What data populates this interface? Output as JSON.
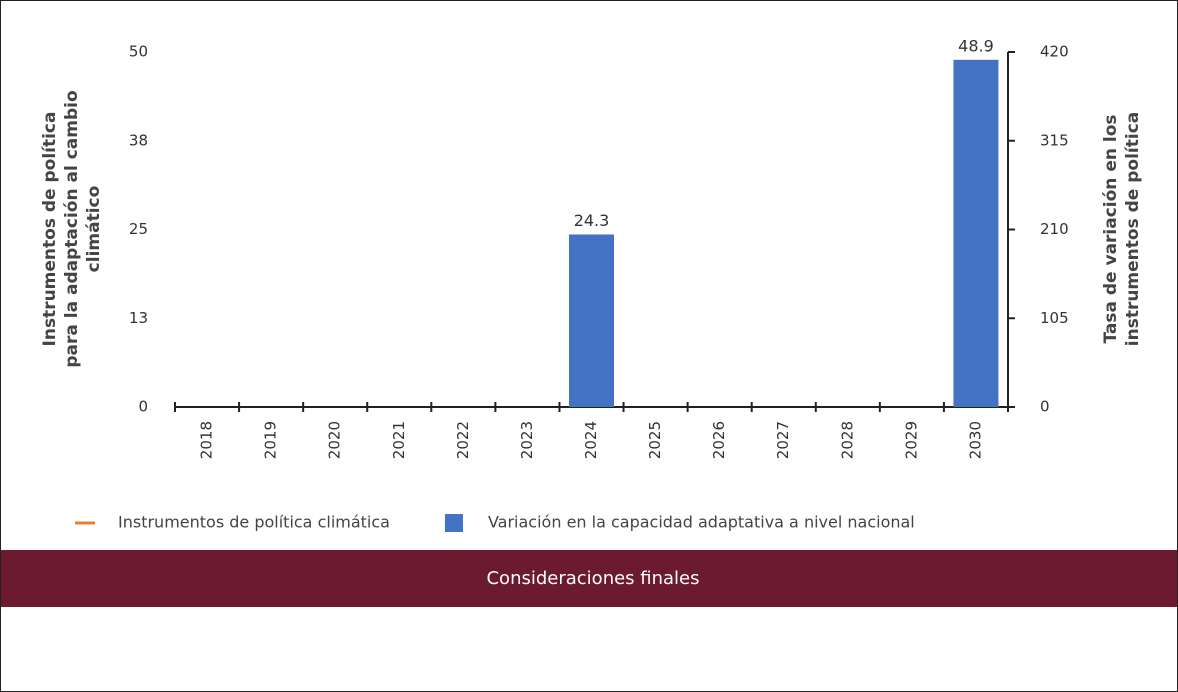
{
  "chart_data": {
    "type": "bar",
    "ylabel": [
      "Instrumentos de política",
      "para la adaptación al cambio",
      "climático"
    ],
    "y2label": [
      "Tasa de variación en los",
      "instrumentos de política"
    ],
    "categories": [
      "2018",
      "2019",
      "2020",
      "2021",
      "2022",
      "2023",
      "2024",
      "2025",
      "2026",
      "2027",
      "2028",
      "2029",
      "2030"
    ],
    "series": [
      {
        "name": "Instrumentos de política climática",
        "type": "line",
        "color": "#ed7d31",
        "axis": "y2",
        "values": [
          null,
          null,
          null,
          null,
          null,
          null,
          null,
          null,
          null,
          null,
          null,
          null,
          null
        ]
      },
      {
        "name": "Variación en la capacidad adaptativa a nivel nacional",
        "type": "bar",
        "color": "#4472c4",
        "values": [
          null,
          null,
          null,
          null,
          null,
          null,
          24.3,
          null,
          null,
          null,
          null,
          null,
          48.9
        ]
      }
    ],
    "ylim": [
      0,
      50
    ],
    "yticks": [
      0,
      {
        "value": 12.5,
        "label": "13"
      },
      25,
      {
        "value": 37.5,
        "label": "38"
      },
      50
    ],
    "y2lim": [
      0,
      420
    ],
    "y2ticks": [
      0,
      105,
      210,
      315,
      420
    ],
    "legend": "bottom"
  },
  "banner": {
    "text": "Consideraciones finales"
  }
}
